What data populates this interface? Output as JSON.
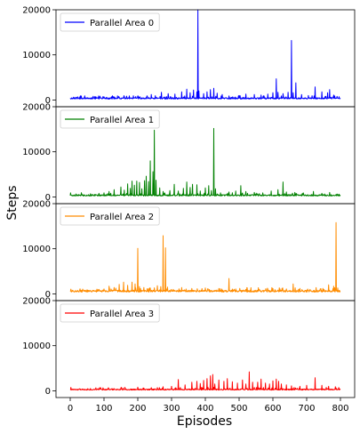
{
  "chart_data": {
    "type": "line",
    "xlabel": "Episodes",
    "ylabel": "Steps",
    "x_range": [
      0,
      800
    ],
    "x_ticks": [
      0,
      100,
      200,
      300,
      400,
      500,
      600,
      700,
      800
    ],
    "y_range": [
      0,
      20000
    ],
    "y_ticks": [
      0,
      10000,
      20000
    ],
    "legend_position": "top-left",
    "grid": false,
    "panels": [
      {
        "name": "Parallel Area 0",
        "color": "#0000ff",
        "baseline": 200,
        "noise": 300,
        "spikes": [
          [
            20,
            500
          ],
          [
            100,
            700
          ],
          [
            160,
            800
          ],
          [
            200,
            900
          ],
          [
            240,
            1200
          ],
          [
            270,
            1700
          ],
          [
            290,
            1400
          ],
          [
            310,
            1300
          ],
          [
            330,
            1800
          ],
          [
            345,
            2400
          ],
          [
            355,
            1600
          ],
          [
            365,
            2200
          ],
          [
            375,
            1800
          ],
          [
            378,
            20000
          ],
          [
            381,
            2000
          ],
          [
            395,
            1400
          ],
          [
            405,
            1800
          ],
          [
            415,
            2300
          ],
          [
            425,
            2600
          ],
          [
            435,
            1500
          ],
          [
            450,
            1200
          ],
          [
            470,
            900
          ],
          [
            500,
            1000
          ],
          [
            520,
            1300
          ],
          [
            545,
            1200
          ],
          [
            565,
            1100
          ],
          [
            585,
            1300
          ],
          [
            600,
            1600
          ],
          [
            610,
            4700
          ],
          [
            615,
            1700
          ],
          [
            630,
            1400
          ],
          [
            645,
            1700
          ],
          [
            655,
            13200
          ],
          [
            660,
            1600
          ],
          [
            668,
            3800
          ],
          [
            685,
            1200
          ],
          [
            705,
            1000
          ],
          [
            725,
            2900
          ],
          [
            745,
            1800
          ],
          [
            762,
            1600
          ],
          [
            768,
            2300
          ],
          [
            780,
            1100
          ]
        ]
      },
      {
        "name": "Parallel Area 1",
        "color": "#008000",
        "baseline": 200,
        "noise": 300,
        "spikes": [
          [
            60,
            700
          ],
          [
            100,
            900
          ],
          [
            115,
            1200
          ],
          [
            130,
            1600
          ],
          [
            150,
            2200
          ],
          [
            160,
            1500
          ],
          [
            170,
            2900
          ],
          [
            178,
            1900
          ],
          [
            183,
            3500
          ],
          [
            190,
            2600
          ],
          [
            197,
            3500
          ],
          [
            205,
            3200
          ],
          [
            212,
            1800
          ],
          [
            220,
            3600
          ],
          [
            225,
            4600
          ],
          [
            232,
            3400
          ],
          [
            237,
            8000
          ],
          [
            245,
            5600
          ],
          [
            249,
            14800
          ],
          [
            254,
            3700
          ],
          [
            265,
            2000
          ],
          [
            275,
            1200
          ],
          [
            295,
            1400
          ],
          [
            308,
            2800
          ],
          [
            320,
            1300
          ],
          [
            335,
            1900
          ],
          [
            345,
            3300
          ],
          [
            355,
            2100
          ],
          [
            362,
            2800
          ],
          [
            375,
            2700
          ],
          [
            385,
            1300
          ],
          [
            400,
            2000
          ],
          [
            410,
            2500
          ],
          [
            418,
            1400
          ],
          [
            425,
            15200
          ],
          [
            430,
            1800
          ],
          [
            445,
            900
          ],
          [
            470,
            1100
          ],
          [
            490,
            1300
          ],
          [
            505,
            2500
          ],
          [
            520,
            1200
          ],
          [
            545,
            1000
          ],
          [
            570,
            900
          ],
          [
            595,
            1300
          ],
          [
            615,
            1600
          ],
          [
            630,
            3300
          ],
          [
            640,
            1100
          ],
          [
            665,
            1000
          ],
          [
            690,
            900
          ],
          [
            720,
            1200
          ],
          [
            745,
            800
          ],
          [
            768,
            1000
          ]
        ]
      },
      {
        "name": "Parallel Area 2",
        "color": "#ff8c00",
        "baseline": 400,
        "noise": 400,
        "spikes": [
          [
            15,
            700
          ],
          [
            50,
            900
          ],
          [
            85,
            1000
          ],
          [
            100,
            1100
          ],
          [
            115,
            1700
          ],
          [
            130,
            1400
          ],
          [
            145,
            2100
          ],
          [
            158,
            2600
          ],
          [
            170,
            1900
          ],
          [
            183,
            2600
          ],
          [
            192,
            2200
          ],
          [
            200,
            10100
          ],
          [
            205,
            1600
          ],
          [
            218,
            1400
          ],
          [
            235,
            1300
          ],
          [
            258,
            1800
          ],
          [
            268,
            1600
          ],
          [
            275,
            12900
          ],
          [
            282,
            10200
          ],
          [
            288,
            1500
          ],
          [
            305,
            1000
          ],
          [
            330,
            1400
          ],
          [
            360,
            1200
          ],
          [
            400,
            1300
          ],
          [
            440,
            1200
          ],
          [
            470,
            3400
          ],
          [
            490,
            1100
          ],
          [
            520,
            1000
          ],
          [
            560,
            1000
          ],
          [
            600,
            1200
          ],
          [
            640,
            1100
          ],
          [
            660,
            2200
          ],
          [
            680,
            1200
          ],
          [
            710,
            1000
          ],
          [
            740,
            1100
          ],
          [
            765,
            2000
          ],
          [
            780,
            1700
          ],
          [
            787,
            15800
          ],
          [
            792,
            1300
          ]
        ]
      },
      {
        "name": "Parallel Area 3",
        "color": "#ff0000",
        "baseline": 150,
        "noise": 250,
        "spikes": [
          [
            60,
            500
          ],
          [
            90,
            700
          ],
          [
            150,
            600
          ],
          [
            200,
            800
          ],
          [
            240,
            700
          ],
          [
            275,
            900
          ],
          [
            300,
            1000
          ],
          [
            320,
            2500
          ],
          [
            340,
            1300
          ],
          [
            360,
            1900
          ],
          [
            375,
            2100
          ],
          [
            385,
            1600
          ],
          [
            395,
            2300
          ],
          [
            405,
            2700
          ],
          [
            415,
            3300
          ],
          [
            422,
            3600
          ],
          [
            428,
            1500
          ],
          [
            440,
            2400
          ],
          [
            455,
            2100
          ],
          [
            465,
            2700
          ],
          [
            480,
            2000
          ],
          [
            495,
            1700
          ],
          [
            510,
            2400
          ],
          [
            520,
            1500
          ],
          [
            530,
            4200
          ],
          [
            540,
            1900
          ],
          [
            555,
            1900
          ],
          [
            565,
            2600
          ],
          [
            578,
            1700
          ],
          [
            590,
            1500
          ],
          [
            600,
            2200
          ],
          [
            610,
            2600
          ],
          [
            617,
            2100
          ],
          [
            625,
            1500
          ],
          [
            640,
            1300
          ],
          [
            655,
            1100
          ],
          [
            680,
            1000
          ],
          [
            700,
            1200
          ],
          [
            725,
            2900
          ],
          [
            745,
            1200
          ],
          [
            765,
            1000
          ],
          [
            785,
            900
          ]
        ]
      }
    ]
  }
}
